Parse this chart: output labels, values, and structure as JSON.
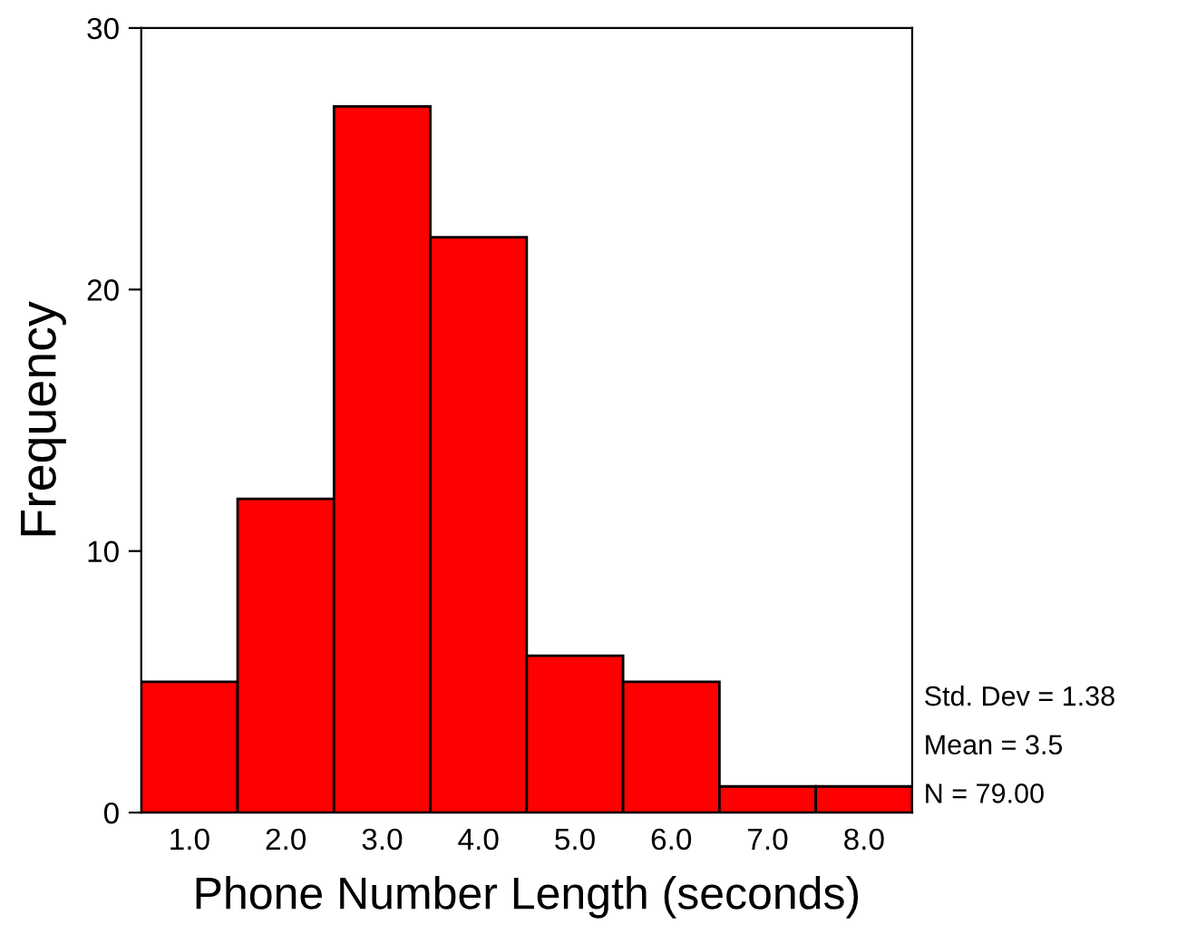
{
  "chart_data": {
    "type": "histogram",
    "xlabel": "Phone Number Length (seconds)",
    "ylabel": "Frequency",
    "bins": [
      0.5,
      1.5,
      2.5,
      3.5,
      4.5,
      5.5,
      6.5,
      7.5,
      8.5
    ],
    "values": [
      5,
      12,
      27,
      22,
      6,
      5,
      1,
      1
    ],
    "color": "#ff0000",
    "xlim": [
      0.5,
      8.5
    ],
    "xticks": [
      {
        "value": 1,
        "label": "1.0"
      },
      {
        "value": 2,
        "label": "2.0"
      },
      {
        "value": 3,
        "label": "3.0"
      },
      {
        "value": 4,
        "label": "4.0"
      },
      {
        "value": 5,
        "label": "5.0"
      },
      {
        "value": 6,
        "label": "6.0"
      },
      {
        "value": 7,
        "label": "7.0"
      },
      {
        "value": 8,
        "label": "8.0"
      }
    ],
    "ylim": [
      0,
      30
    ],
    "yticks": [
      0,
      10,
      20,
      30
    ],
    "grid": false,
    "annotations": [
      "Std. Dev = 1.38",
      "Mean = 3.5",
      "N = 79.00"
    ]
  }
}
